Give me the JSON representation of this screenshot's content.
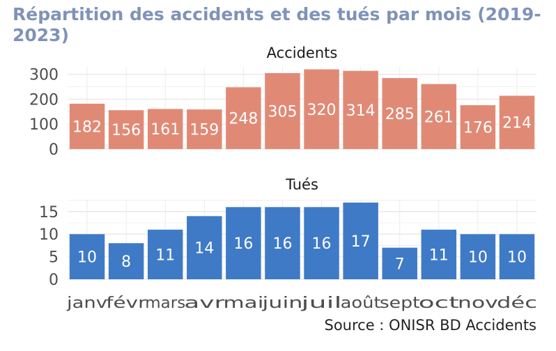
{
  "title": "Répartition des accidents et des tués par mois (2019-2023)",
  "source": "Source : ONISR BD Accidents",
  "colors": {
    "title": "#7f93b8",
    "accidents": "#e08a76",
    "tues": "#3f7ac6",
    "grid": "#ebebeb",
    "panel": "#ffffff"
  },
  "chart_data": [
    {
      "type": "bar",
      "title": "Accidents",
      "categories": [
        "janv",
        "févr",
        "mars",
        "avr",
        "mai",
        "juin",
        "juil",
        "août",
        "sept",
        "oct",
        "nov",
        "déc"
      ],
      "values": [
        182,
        156,
        161,
        159,
        248,
        305,
        320,
        314,
        285,
        261,
        176,
        214
      ],
      "yticks": [
        0,
        100,
        200,
        300
      ],
      "ylim": [
        0,
        330
      ],
      "grid": true
    },
    {
      "type": "bar",
      "title": "Tués",
      "categories": [
        "janv",
        "févr",
        "mars",
        "avr",
        "mai",
        "juin",
        "juil",
        "août",
        "sept",
        "oct",
        "nov",
        "déc"
      ],
      "values": [
        10,
        8,
        11,
        14,
        16,
        16,
        16,
        17,
        7,
        11,
        10,
        10
      ],
      "yticks": [
        0,
        5,
        10,
        15
      ],
      "ylim": [
        0,
        17.6
      ],
      "grid": true
    }
  ]
}
